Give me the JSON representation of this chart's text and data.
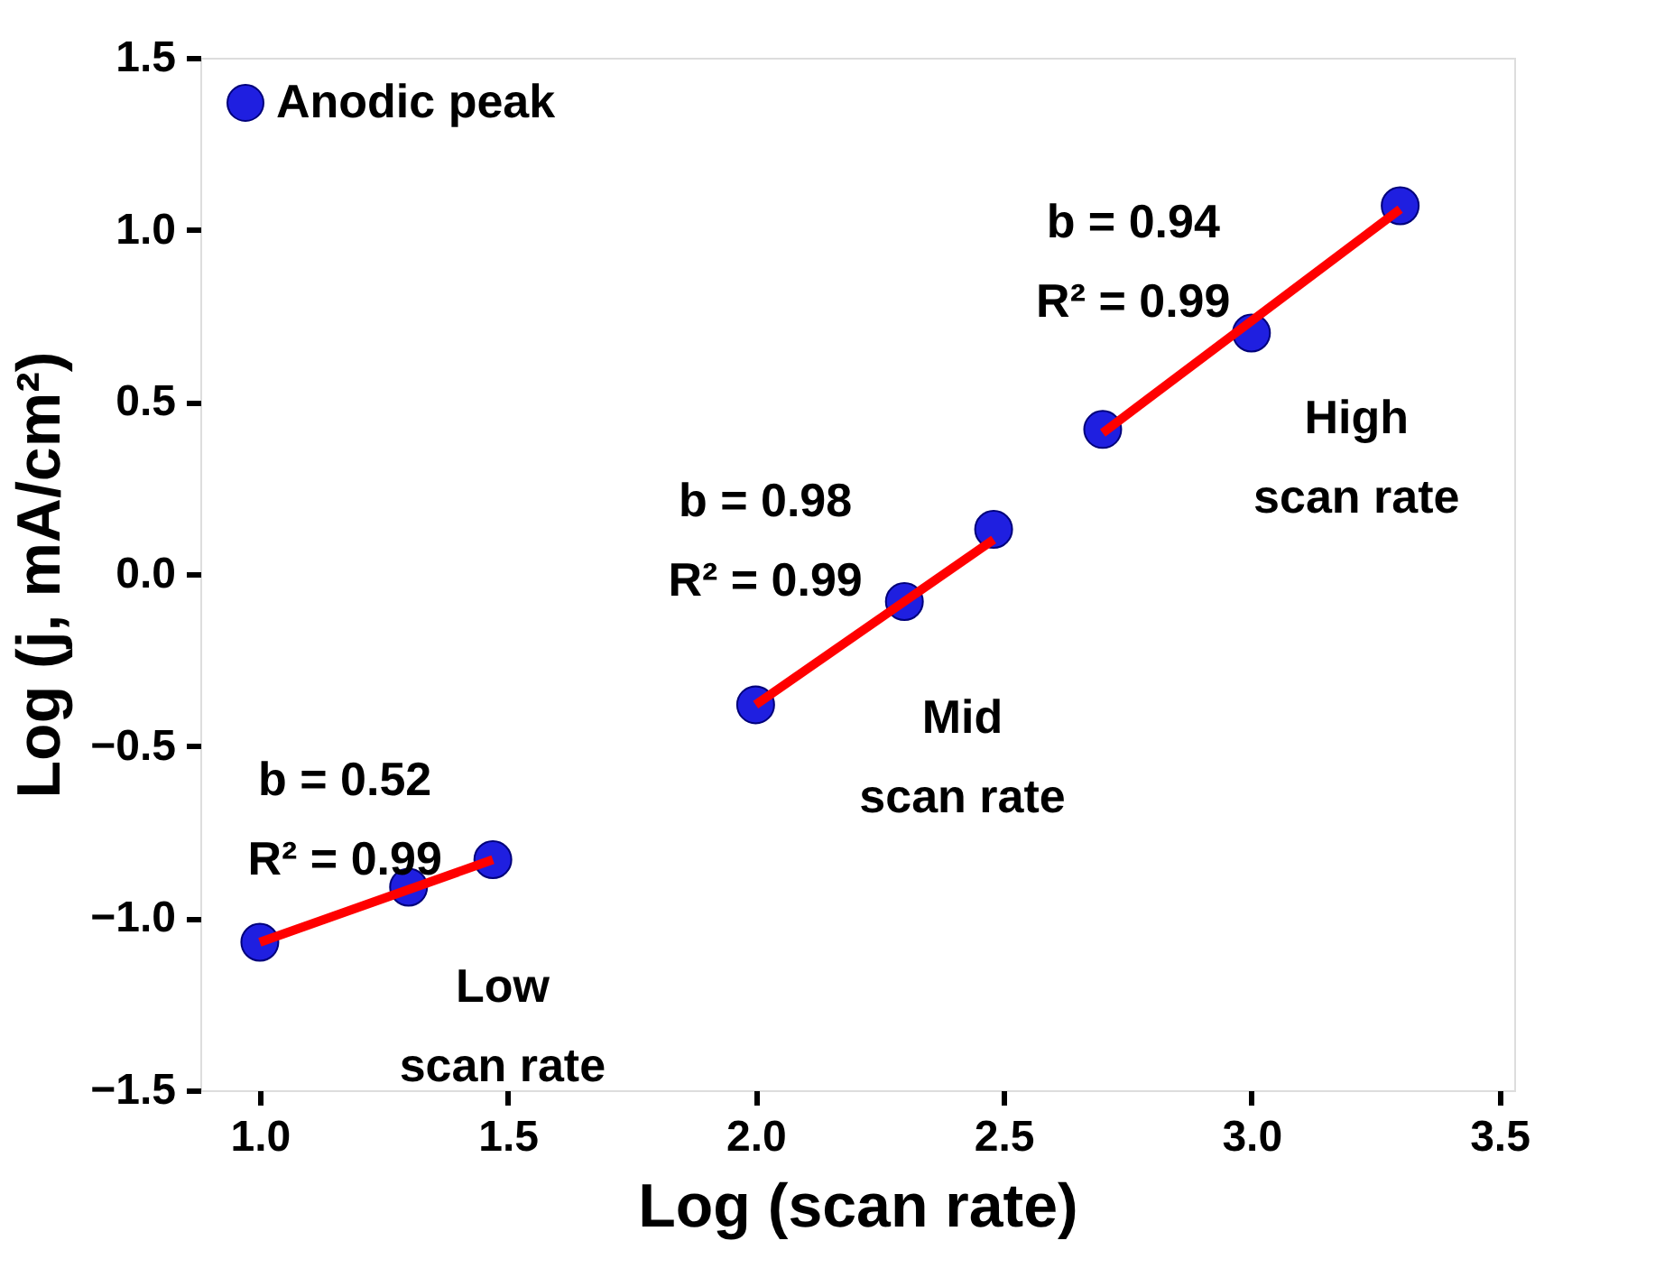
{
  "chart_data": {
    "type": "scatter",
    "xlabel": "Log (scan rate)",
    "ylabel": "Log (j, mA/cm²)",
    "xlim": [
      0.88,
      3.53
    ],
    "ylim": [
      -1.5,
      1.5
    ],
    "xticks": [
      {
        "value": 1.0,
        "label": "1.0"
      },
      1.5,
      {
        "value": 2.0,
        "label": "2.0"
      },
      2.5,
      {
        "value": 3.0,
        "label": "3.0"
      },
      3.5
    ],
    "yticks": [
      {
        "value": -1.5,
        "label": "−1.5"
      },
      {
        "value": -1.0,
        "label": "−1.0"
      },
      {
        "value": -0.5,
        "label": "−0.5"
      },
      {
        "value": 0.0,
        "label": "0.0"
      },
      {
        "value": 0.5,
        "label": "0.5"
      },
      {
        "value": 1.0,
        "label": "1.0"
      },
      {
        "value": 1.5,
        "label": "1.5"
      }
    ],
    "grid": false,
    "legend": "top left",
    "series": [
      {
        "name": "Anodic peak",
        "marker": "circle",
        "color": "#1f1fe0",
        "x": [
          1.0,
          1.3,
          1.47,
          2.0,
          2.3,
          2.48,
          2.7,
          3.0,
          3.3
        ],
        "values": [
          -1.07,
          -0.91,
          -0.83,
          -0.38,
          -0.08,
          0.13,
          0.42,
          0.7,
          1.07
        ]
      },
      {
        "type": "line",
        "marker": "none",
        "color": "#ff0000",
        "line_style": "solid",
        "x": [
          1.0,
          1.47
        ],
        "values": [
          -1.07,
          -0.83
        ]
      },
      {
        "type": "line",
        "marker": "none",
        "color": "#ff0000",
        "line_style": "solid",
        "x": [
          2.0,
          2.48
        ],
        "values": [
          -0.38,
          0.1
        ]
      },
      {
        "type": "line",
        "marker": "none",
        "color": "#ff0000",
        "line_style": "solid",
        "x": [
          2.7,
          3.3
        ],
        "values": [
          0.41,
          1.06
        ]
      }
    ],
    "annotations": [
      "b = 0.52\nR² = 0.99",
      "Low\nscan rate",
      "b = 0.98\nR² = 0.99",
      "Mid\nscan rate",
      "b = 0.94\nR² = 0.99",
      "High\nscan rate"
    ]
  }
}
